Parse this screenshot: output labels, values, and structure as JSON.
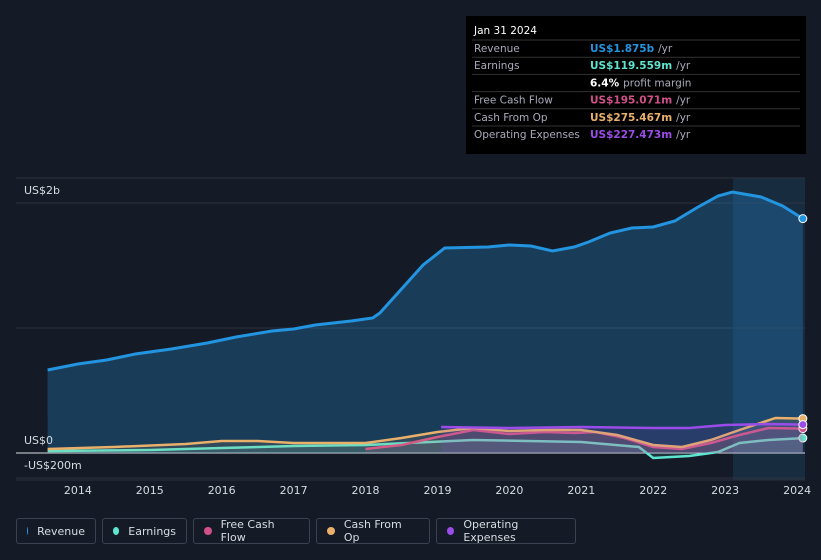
{
  "chart_data": {
    "type": "line",
    "xlim": [
      2013.14,
      2024.11
    ],
    "ylim": [
      -200,
      2200
    ],
    "xticks": [
      2014,
      2015,
      2016,
      2017,
      2018,
      2019,
      2020,
      2021,
      2022,
      2023,
      2024
    ],
    "yticks": [
      {
        "value": 2000,
        "label": "US$2b"
      },
      {
        "value": 0,
        "label": "US$0"
      },
      {
        "value": -200,
        "label": "-US$200m"
      }
    ],
    "series": [
      {
        "name": "Revenue",
        "color": "#2394e0",
        "x": [
          2013.58,
          2014.0,
          2014.4,
          2014.8,
          2015.3,
          2015.8,
          2016.2,
          2016.7,
          2017.0,
          2017.3,
          2017.8,
          2018.1,
          2018.2,
          2018.4,
          2018.8,
          2019.1,
          2019.7,
          2020.0,
          2020.3,
          2020.6,
          2020.9,
          2021.1,
          2021.4,
          2021.7,
          2022.0,
          2022.3,
          2022.6,
          2022.9,
          2023.1,
          2023.5,
          2023.8,
          2024.08
        ],
        "values": [
          664,
          712,
          744,
          792,
          832,
          880,
          928,
          976,
          992,
          1024,
          1056,
          1080,
          1120,
          1248,
          1504,
          1640,
          1648,
          1664,
          1656,
          1616,
          1648,
          1688,
          1760,
          1800,
          1808,
          1856,
          1960,
          2056,
          2088,
          2048,
          1976,
          1875
        ]
      },
      {
        "name": "Earnings",
        "color": "#5ee5d0",
        "x": [
          2013.58,
          2015.0,
          2016.0,
          2017.0,
          2018.0,
          2019.5,
          2021.0,
          2021.8,
          2022.0,
          2022.5,
          2022.9,
          2023.2,
          2023.6,
          2024.08
        ],
        "values": [
          16,
          24,
          40,
          56,
          64,
          104,
          88,
          48,
          -40,
          -24,
          8,
          80,
          104,
          119.559
        ]
      },
      {
        "name": "Free Cash Flow",
        "color": "#d0508a",
        "x": [
          2018.0,
          2018.5,
          2019.0,
          2019.5,
          2020.0,
          2020.5,
          2020.9,
          2021.2,
          2021.6,
          2022.0,
          2022.4,
          2022.8,
          2023.2,
          2023.6,
          2024.08
        ],
        "values": [
          32,
          64,
          128,
          184,
          152,
          168,
          160,
          168,
          120,
          48,
          32,
          80,
          144,
          200,
          195.071
        ]
      },
      {
        "name": "Cash From Op",
        "color": "#e8b06a",
        "x": [
          2013.58,
          2014.5,
          2015.5,
          2016.0,
          2016.5,
          2017.0,
          2018.0,
          2018.5,
          2019.0,
          2019.5,
          2020.0,
          2020.5,
          2021.0,
          2021.5,
          2022.0,
          2022.4,
          2022.8,
          2023.2,
          2023.7,
          2024.08
        ],
        "values": [
          32,
          48,
          72,
          96,
          96,
          80,
          80,
          120,
          168,
          200,
          176,
          184,
          184,
          144,
          64,
          48,
          104,
          184,
          280,
          275.467
        ]
      },
      {
        "name": "Operating Expenses",
        "color": "#9a4ce8",
        "x": [
          2019.05,
          2020.0,
          2021.0,
          2022.0,
          2022.5,
          2023.0,
          2023.6,
          2024.08
        ],
        "values": [
          208,
          200,
          208,
          200,
          200,
          224,
          232,
          227.473
        ]
      }
    ]
  },
  "tooltip": {
    "date": "Jan 31 2024",
    "per": "/yr",
    "rows": [
      {
        "label": "Revenue",
        "value": "US$1.875b"
      },
      {
        "label": "Earnings",
        "value": "US$119.559m"
      },
      {
        "label": "",
        "value": "6.4%",
        "note": "profit margin"
      },
      {
        "label": "Free Cash Flow",
        "value": "US$195.071m"
      },
      {
        "label": "Cash From Op",
        "value": "US$275.467m"
      },
      {
        "label": "Operating Expenses",
        "value": "US$227.473m"
      }
    ]
  }
}
